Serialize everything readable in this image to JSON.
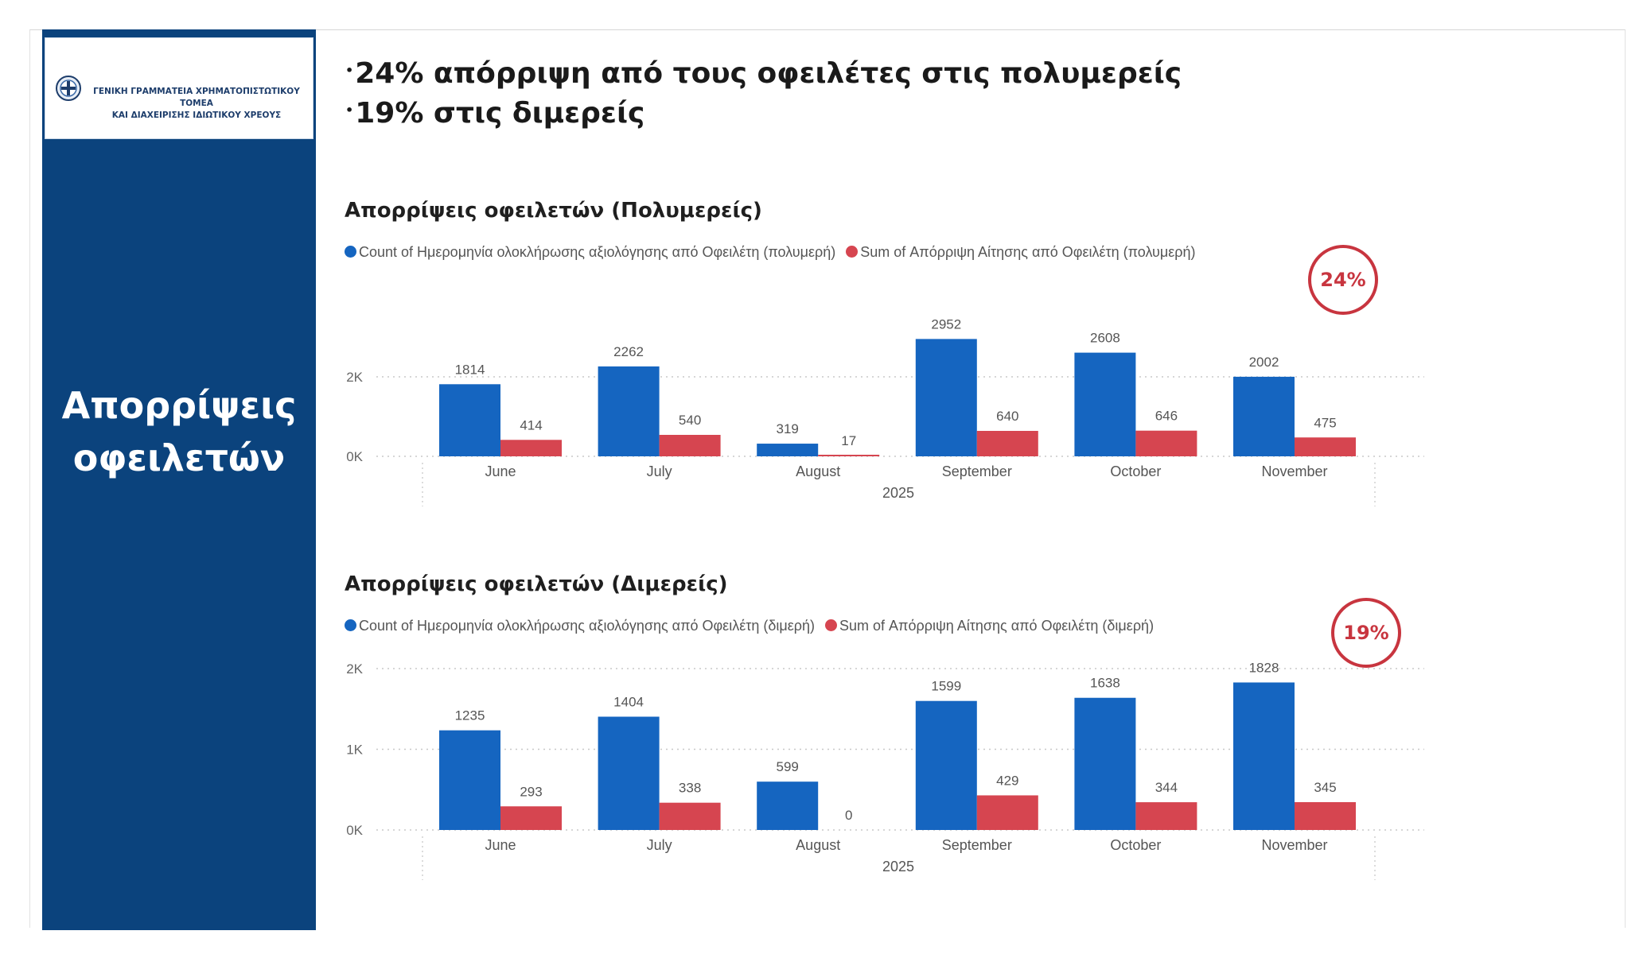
{
  "sidebar": {
    "logo_line1": "ΓΕΝΙΚΗ ΓΡΑΜΜΑΤΕΙΑ ΧΡΗΜΑΤΟΠΙΣΤΩΤΙΚΟΥ ΤΟΜΕΑ",
    "logo_line2": "ΚΑΙ ΔΙΑΧΕΙΡΙΣΗΣ ΙΔΙΩΤΙΚΟΥ ΧΡΕΟΥΣ",
    "title_line1": "Απορρίψεις",
    "title_line2": "οφειλετών"
  },
  "headline": {
    "line1": "24% απόρριψη από τους οφειλέτες στις πολυμερείς",
    "line2": "19% στις διμερείς"
  },
  "colors": {
    "blue": "#1565c0",
    "red": "#d64550",
    "sidebar": "#0b437d"
  },
  "chart_data": [
    {
      "type": "bar",
      "title": "Απορρίψεις οφειλετών (Πολυμερείς)",
      "badge": "24%",
      "categories": [
        "June",
        "July",
        "August",
        "September",
        "October",
        "November"
      ],
      "group_label": "2025",
      "series": [
        {
          "name": "Count of Ημερομηνία ολοκλήρωσης αξιολόγησης από Οφειλέτη (πολυμερή)",
          "values": [
            1814,
            2262,
            319,
            2952,
            2608,
            2002
          ]
        },
        {
          "name": "Sum of Απόρριψη Αίτησης από Οφειλέτη (πολυμερή)",
          "values": [
            414,
            540,
            17,
            640,
            646,
            475
          ]
        }
      ],
      "yticks": [
        {
          "v": 0,
          "label": "0K"
        },
        {
          "v": 2000,
          "label": "2K"
        }
      ],
      "ylim": [
        0,
        3000
      ],
      "grid": true
    },
    {
      "type": "bar",
      "title": "Απορρίψεις οφειλετών (Διμερείς)",
      "badge": "19%",
      "categories": [
        "June",
        "July",
        "August",
        "September",
        "October",
        "November"
      ],
      "group_label": "2025",
      "series": [
        {
          "name": "Count of Ημερομηνία ολοκλήρωσης αξιολόγησης από Οφειλέτη (διμερή)",
          "values": [
            1235,
            1404,
            599,
            1599,
            1638,
            1828
          ]
        },
        {
          "name": "Sum of Απόρριψη Αίτησης από Οφειλέτη (διμερή)",
          "values": [
            293,
            338,
            0,
            429,
            344,
            345
          ]
        }
      ],
      "yticks": [
        {
          "v": 0,
          "label": "0K"
        },
        {
          "v": 1000,
          "label": "1K"
        },
        {
          "v": 2000,
          "label": "2K"
        }
      ],
      "ylim": [
        0,
        2000
      ],
      "grid": true
    }
  ]
}
